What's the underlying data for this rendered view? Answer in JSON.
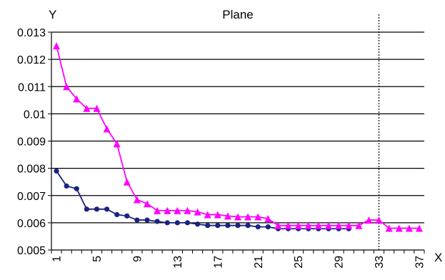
{
  "chart_data": {
    "type": "line",
    "title": "Plane",
    "xlabel": "X",
    "ylabel": "Y",
    "x": [
      1,
      2,
      3,
      4,
      5,
      6,
      7,
      8,
      9,
      10,
      11,
      12,
      13,
      14,
      15,
      16,
      17,
      18,
      19,
      20,
      21,
      22,
      23,
      24,
      25,
      26,
      27,
      28,
      29,
      30,
      31,
      32,
      33,
      34,
      35,
      36,
      37
    ],
    "x_tick_labels": [
      "1",
      "5",
      "9",
      "13",
      "17",
      "21",
      "25",
      "29",
      "33",
      "37"
    ],
    "x_tick_values": [
      1,
      5,
      9,
      13,
      17,
      21,
      25,
      29,
      33,
      37
    ],
    "ylim": [
      0.005,
      0.013
    ],
    "y_tick_values": [
      0.005,
      0.006,
      0.007,
      0.008,
      0.009,
      0.01,
      0.011,
      0.012,
      0.013
    ],
    "y_tick_labels": [
      "0.005",
      "0.006",
      "0.007",
      "0.008",
      "0.009",
      "0.01",
      "0.011",
      "0.012",
      "0.013"
    ],
    "grid": "horizontal",
    "vertical_marker_x": 33,
    "series": [
      {
        "color": "#1a237e",
        "marker": "circle",
        "x": [
          1,
          2,
          3,
          4,
          5,
          6,
          7,
          8,
          9,
          10,
          11,
          12,
          13,
          14,
          15,
          16,
          17,
          18,
          19,
          20,
          21,
          22,
          23,
          24,
          25,
          26,
          27,
          28,
          29,
          30
        ],
        "values": [
          0.0079,
          0.00735,
          0.00725,
          0.0065,
          0.0065,
          0.0065,
          0.0063,
          0.00625,
          0.0061,
          0.0061,
          0.00605,
          0.006,
          0.006,
          0.006,
          0.00595,
          0.0059,
          0.0059,
          0.0059,
          0.0059,
          0.0059,
          0.00585,
          0.00585,
          0.00578,
          0.00578,
          0.00578,
          0.00578,
          0.00578,
          0.00578,
          0.00578,
          0.00578
        ]
      },
      {
        "color": "#ff00ff",
        "marker": "triangle",
        "x": [
          1,
          2,
          3,
          4,
          5,
          6,
          7,
          8,
          9,
          10,
          11,
          12,
          13,
          14,
          15,
          16,
          17,
          18,
          19,
          20,
          21,
          22,
          23,
          24,
          25,
          26,
          27,
          28,
          29,
          30,
          31,
          32,
          33,
          34,
          35,
          36,
          37
        ],
        "values": [
          0.0125,
          0.011,
          0.01055,
          0.0102,
          0.0102,
          0.00945,
          0.0089,
          0.0075,
          0.00685,
          0.0067,
          0.00645,
          0.00645,
          0.00645,
          0.00645,
          0.0064,
          0.0063,
          0.0063,
          0.00625,
          0.00622,
          0.00622,
          0.00622,
          0.00615,
          0.0059,
          0.0059,
          0.0059,
          0.0059,
          0.0059,
          0.0059,
          0.0059,
          0.0059,
          0.0059,
          0.0061,
          0.0061,
          0.0058,
          0.0058,
          0.0058,
          0.0058
        ]
      }
    ]
  }
}
